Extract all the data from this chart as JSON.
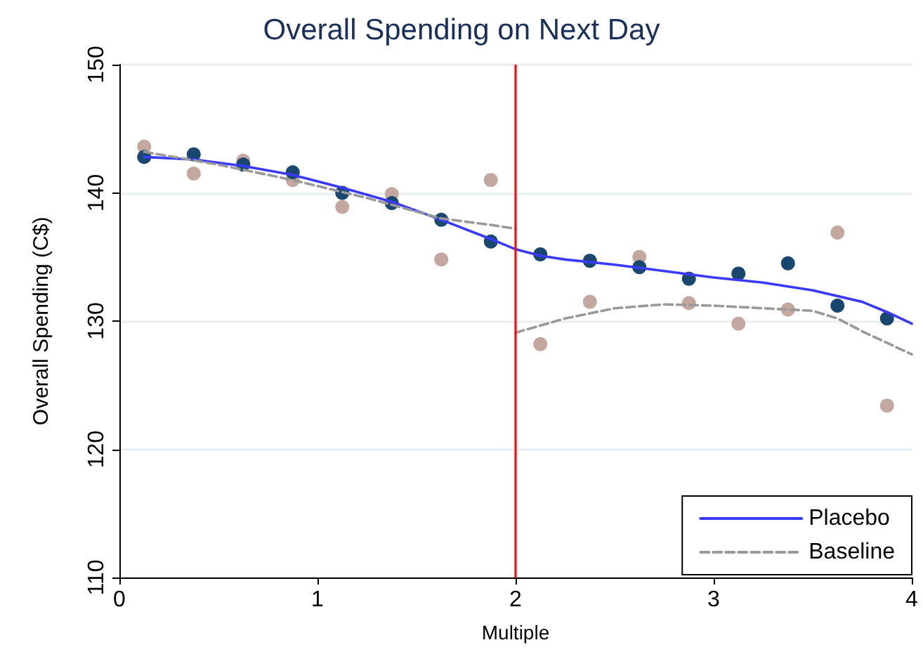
{
  "chart_data": {
    "type": "scatter",
    "title": "Overall Spending on Next Day",
    "xlabel": "Multiple",
    "ylabel": "Overall Spending (C$)",
    "xlim": [
      0,
      4
    ],
    "xticks": [
      0,
      1,
      2,
      3,
      4
    ],
    "ylim": [
      110,
      150
    ],
    "yticks": [
      110,
      120,
      130,
      140,
      150
    ],
    "grid": "y",
    "legend": "bottom right",
    "series": [
      {
        "marker": "circle",
        "color": "#c4a8a0",
        "x": [
          0.125,
          0.375,
          0.625,
          0.875,
          1.125,
          1.375,
          1.625,
          1.875,
          2.125,
          2.375,
          2.625,
          2.875,
          3.125,
          3.375,
          3.625,
          3.875
        ],
        "values": [
          143.6,
          141.5,
          142.5,
          141.0,
          138.9,
          139.9,
          134.8,
          141.0,
          128.2,
          131.5,
          135.0,
          131.4,
          129.8,
          130.9,
          136.9,
          123.4
        ]
      },
      {
        "marker": "circle",
        "color": "#1a476f",
        "x": [
          0.125,
          0.375,
          0.625,
          0.875,
          1.125,
          1.375,
          1.625,
          1.875,
          2.125,
          2.375,
          2.625,
          2.875,
          3.125,
          3.375,
          3.625,
          3.875
        ],
        "values": [
          142.8,
          143.0,
          142.2,
          141.6,
          140.0,
          139.2,
          137.9,
          136.2,
          135.2,
          134.7,
          134.2,
          133.3,
          133.7,
          134.5,
          131.2,
          130.2
        ]
      },
      {
        "type": "line",
        "name": "Placebo",
        "marker": "none",
        "line_style": "solid",
        "color": "#3a3aff",
        "x": [
          0.125,
          0.375,
          0.625,
          0.875,
          1.125,
          1.375,
          1.625,
          1.875,
          2.0,
          2.125,
          2.25,
          2.5,
          2.75,
          3.0,
          3.25,
          3.5,
          3.75,
          3.875,
          4.0
        ],
        "values": [
          142.8,
          142.6,
          142.1,
          141.4,
          140.4,
          139.3,
          137.9,
          136.4,
          135.6,
          135.1,
          134.8,
          134.4,
          133.9,
          133.4,
          133.0,
          132.4,
          131.5,
          130.7,
          129.8
        ]
      },
      {
        "type": "line",
        "name": "Baseline",
        "marker": "none",
        "line_style": "dashed",
        "color": "#999999",
        "x": [
          0.125,
          0.5,
          0.875,
          1.25,
          1.625,
          1.875,
          2.0
        ],
        "values": [
          143.2,
          142.2,
          141.0,
          139.6,
          138.0,
          137.5,
          137.2
        ]
      },
      {
        "type": "line",
        "marker": "none",
        "line_style": "dashed",
        "color": "#999999",
        "x": [
          2.0,
          2.25,
          2.5,
          2.75,
          3.0,
          3.25,
          3.5,
          3.625,
          3.75,
          4.0
        ],
        "values": [
          129.1,
          130.2,
          131.0,
          131.3,
          131.2,
          131.0,
          130.8,
          130.2,
          129.2,
          127.4
        ]
      }
    ],
    "ref_lines": [
      {
        "axis": "x",
        "value": 2,
        "color": "#ff0000",
        "line_style": "solid"
      }
    ]
  }
}
